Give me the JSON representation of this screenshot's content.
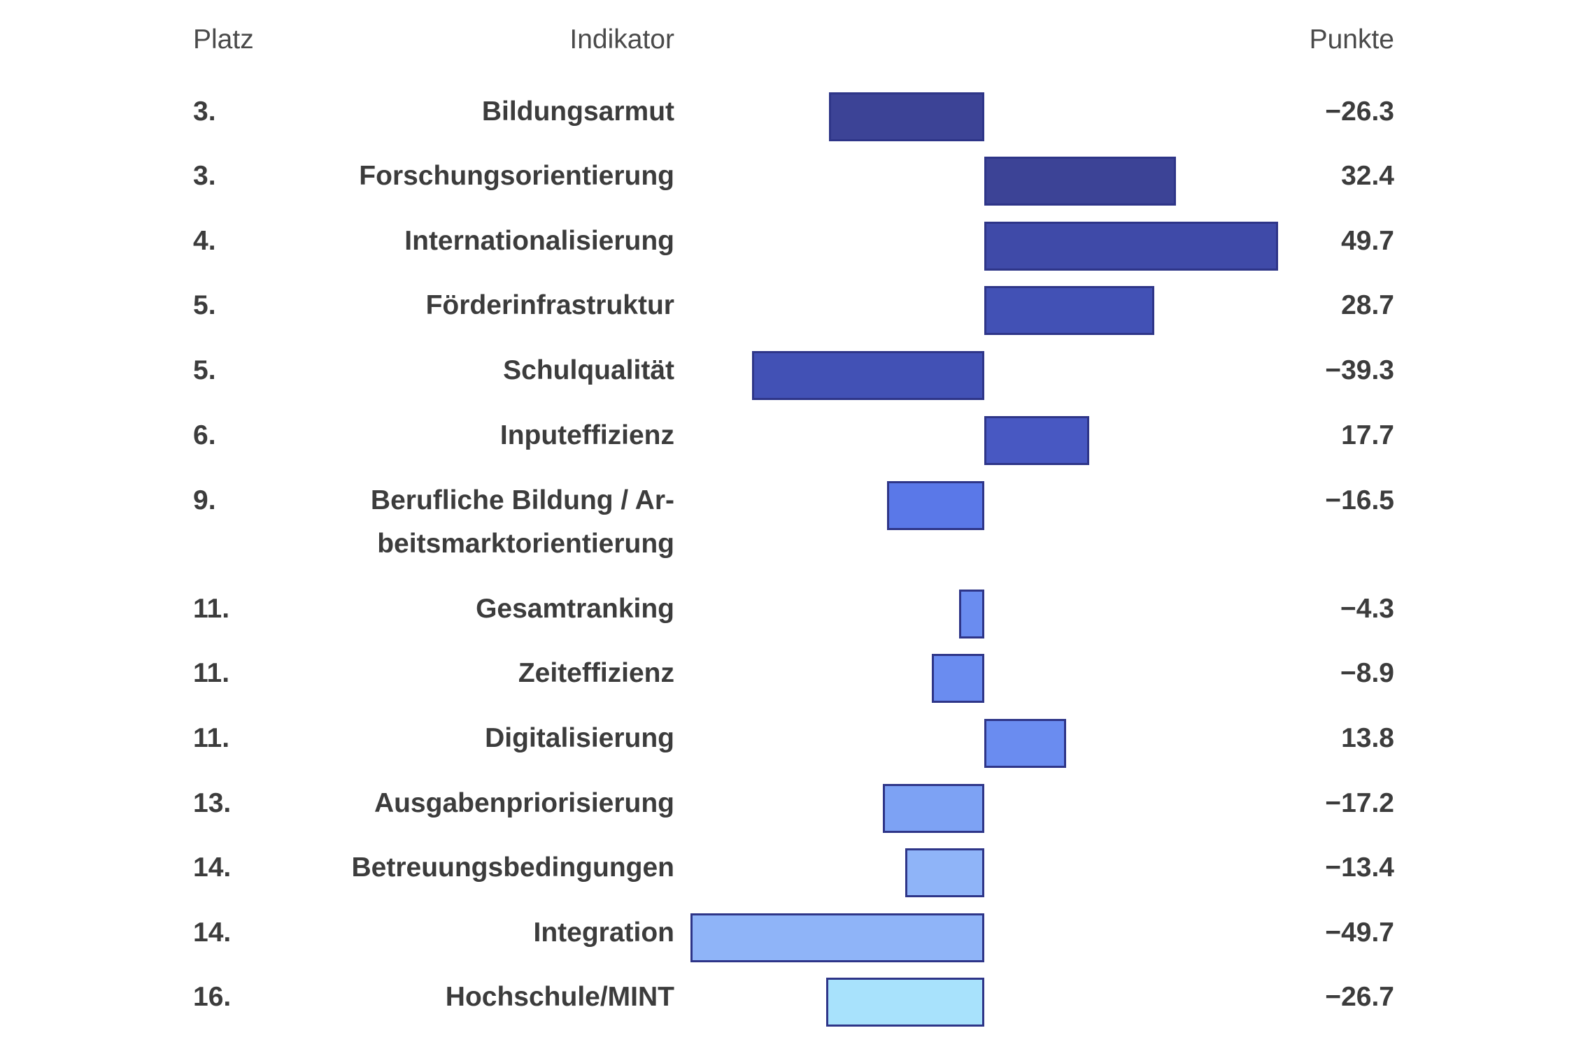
{
  "header": {
    "rank": "Platz",
    "indicator": "Indikator",
    "points": "Punkte"
  },
  "chart_data": {
    "type": "bar",
    "orientation": "horizontal",
    "xlim": [
      -60,
      60
    ],
    "grid": false,
    "legend": "none",
    "rows": [
      {
        "rank": "3.",
        "label": "Bildungsarmut",
        "value": -26.3,
        "display": "−26.3",
        "color": "#3c4396"
      },
      {
        "rank": "3.",
        "label": "Forschungsorientierung",
        "value": 32.4,
        "display": "32.4",
        "color": "#3c4396"
      },
      {
        "rank": "4.",
        "label": "Internationalisierung",
        "value": 49.7,
        "display": "49.7",
        "color": "#3f4aa8"
      },
      {
        "rank": "5.",
        "label": "Förderinfrastruktur",
        "value": 28.7,
        "display": "28.7",
        "color": "#4251b5"
      },
      {
        "rank": "5.",
        "label": "Schulqualität",
        "value": -39.3,
        "display": "−39.3",
        "color": "#4251b5"
      },
      {
        "rank": "6.",
        "label": "Inputeffizienz",
        "value": 17.7,
        "display": "17.7",
        "color": "#4858c2"
      },
      {
        "rank": "9.",
        "label": "Berufliche Bildung / Ar- beitsmarktorientierung",
        "value": -16.5,
        "display": "−16.5",
        "color": "#5a78e8"
      },
      {
        "rank": "11.",
        "label": "Gesamtranking",
        "value": -4.3,
        "display": "−4.3",
        "color": "#6a8cf0"
      },
      {
        "rank": "11.",
        "label": "Zeiteffizienz",
        "value": -8.9,
        "display": "−8.9",
        "color": "#6a8cf0"
      },
      {
        "rank": "11.",
        "label": "Digitalisierung",
        "value": 13.8,
        "display": "13.8",
        "color": "#6a8cf0"
      },
      {
        "rank": "13.",
        "label": "Ausgabenpriorisierung",
        "value": -17.2,
        "display": "−17.2",
        "color": "#7da2f4"
      },
      {
        "rank": "14.",
        "label": "Betreuungsbedingungen",
        "value": -13.4,
        "display": "−13.4",
        "color": "#8fb4f8"
      },
      {
        "rank": "14.",
        "label": "Integration",
        "value": -49.7,
        "display": "−49.7",
        "color": "#8fb4f8"
      },
      {
        "rank": "16.",
        "label": "Hochschule/MINT",
        "value": -26.7,
        "display": "−26.7",
        "color": "#a8e2fc"
      }
    ]
  }
}
